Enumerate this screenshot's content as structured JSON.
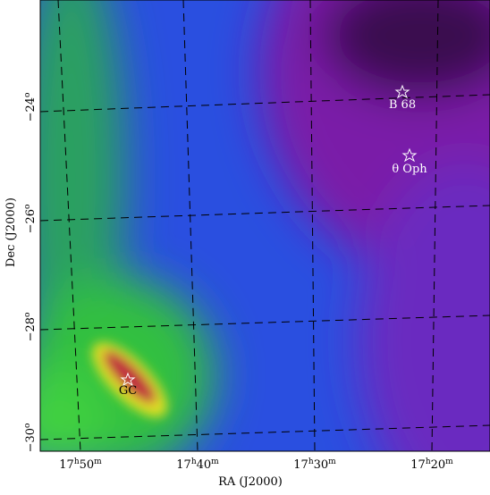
{
  "axes": {
    "x_label": "RA (J2000)",
    "y_label": "Dec (J2000)",
    "x_ticks": [
      [
        "17",
        "h",
        "50",
        "m"
      ],
      [
        "17",
        "h",
        "40",
        "m"
      ],
      [
        "17",
        "h",
        "30",
        "m"
      ],
      [
        "17",
        "h",
        "20",
        "m"
      ]
    ],
    "y_ticks": [
      [
        "−24",
        "o"
      ],
      [
        "−26",
        "o"
      ],
      [
        "−28",
        "o"
      ],
      [
        "−30",
        "o"
      ]
    ]
  },
  "annotations": [
    "B 68",
    "θ Oph",
    "GC"
  ]
}
